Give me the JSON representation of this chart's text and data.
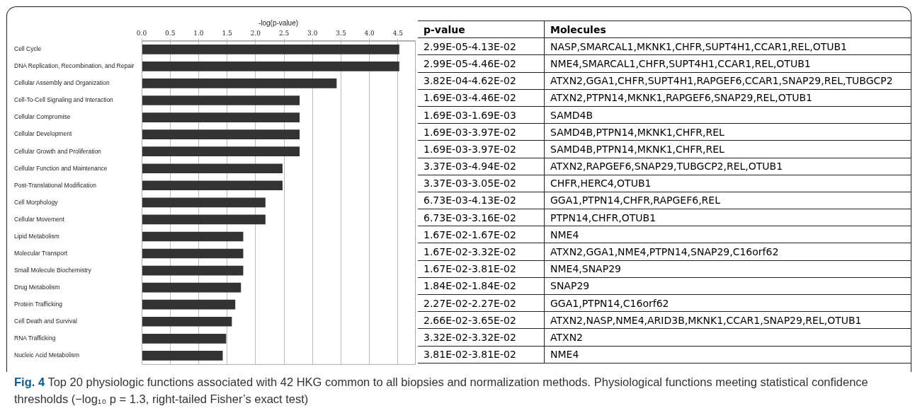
{
  "chart_data": {
    "type": "bar",
    "orientation": "horizontal",
    "xlabel": "-log(p-value)",
    "categories": [
      "Cell Cycle",
      "DNA Replication, Recombination, and Repair",
      "Cellular Assembly and Organization",
      "Cell-To-Cell Signaling and Interaction",
      "Cellular Compromise",
      "Cellular Development",
      "Cellular Growth and Proliferation",
      "Cellular Function and Maintenance",
      "Post-Translational Modification",
      "Cell Morphology",
      "Cellular Movement",
      "Lipid Metabolism",
      "Molecular Transport",
      "Small Molecule Biochemistry",
      "Drug Metabolism",
      "Protein Trafficking",
      "Cell Death and Survival",
      "RNA Trafficking",
      "Nucleic Acid Metabolism"
    ],
    "values": [
      4.52,
      4.52,
      3.42,
      2.77,
      2.77,
      2.77,
      2.77,
      2.47,
      2.47,
      2.17,
      2.17,
      1.78,
      1.78,
      1.78,
      1.74,
      1.64,
      1.58,
      1.48,
      1.42
    ],
    "color": "#333333",
    "xlim": [
      0,
      4.8
    ],
    "xticks": [
      {
        "value": 0,
        "label": "0.0"
      },
      {
        "value": 0.5,
        "label": "0.5"
      },
      {
        "value": 1,
        "label": "1.0"
      },
      {
        "value": 1.5,
        "label": "1.5"
      },
      {
        "value": 2,
        "label": "2.0"
      },
      {
        "value": 2.5,
        "label": "2.5"
      },
      {
        "value": 3,
        "label": "3.0"
      },
      {
        "value": 3.5,
        "label": "3.5"
      },
      {
        "value": 4,
        "label": "4.0"
      },
      {
        "value": 4.5,
        "label": "4.5"
      }
    ],
    "grid": "x",
    "legend": false,
    "annotations": [
      "p-value",
      "Molecules",
      "2.99E-05-4.13E-02",
      "NASP,SMARCAL1,MKNK1,CHFR,SUPT4H1,CCAR1,REL,OTUB1",
      "2.99E-05-4.46E-02",
      "NME4,SMARCAL1,CHFR,SUPT4H1,CCAR1,REL,OTUB1",
      "3.82E-04-4.62E-02",
      "ATXN2,GGA1,CHFR,SUPT4H1,RAPGEF6,CCAR1,SNAP29,REL,TUBGCP2",
      "1.69E-03-4.46E-02",
      "ATXN2,PTPN14,MKNK1,RAPGEF6,SNAP29,REL,OTUB1",
      "1.69E-03-1.69E-03",
      "SAMD4B",
      "1.69E-03-3.97E-02",
      "SAMD4B,PTPN14,MKNK1,CHFR,REL",
      "1.69E-03-3.97E-02",
      "SAMD4B,PTPN14,MKNK1,CHFR,REL",
      "3.37E-03-4.94E-02",
      "ATXN2,RAPGEF6,SNAP29,TUBGCP2,REL,OTUB1",
      "3.37E-03-3.05E-02",
      "CHFR,HERC4,OTUB1",
      "6.73E-03-4.13E-02",
      "GGA1,PTPN14,CHFR,RAPGEF6,REL",
      "6.73E-03-3.16E-02",
      "PTPN14,CHFR,OTUB1",
      "1.67E-02-1.67E-02",
      "NME4",
      "1.67E-02-3.32E-02",
      "ATXN2,GGA1,NME4,PTPN14,SNAP29,C16orf62",
      "1.67E-02-3.81E-02",
      "NME4,SNAP29",
      "1.84E-02-1.84E-02",
      "SNAP29",
      "2.27E-02-2.27E-02",
      "GGA1,PTPN14,C16orf62",
      "2.66E-02-3.65E-02",
      "ATXN2,NASP,NME4,ARID3B,MKNK1,CCAR1,SNAP29,REL,OTUB1",
      "3.32E-02-3.32E-02",
      "ATXN2",
      "3.81E-02-3.81E-02",
      "NME4",
      "Fig. 4",
      "Top 20 physiologic functions associated with 42 HKG common to all biopsies and normalization methods. Physiological functions meeting statistical confidence thresholds (−log₁₀ p = 1.3, right-tailed Fisher’s exact test)"
    ]
  }
}
